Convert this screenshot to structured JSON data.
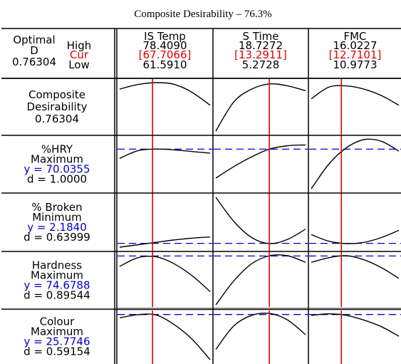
{
  "title": "Composite Desirability – 76.3%",
  "optimal": {
    "label_line1": "Optimal",
    "label_line2": "D",
    "value": "0.76304"
  },
  "row_labels": {
    "high": "High",
    "cur": "Cur",
    "low": "Low"
  },
  "factors": [
    {
      "name": "IS Temp",
      "high": "78.4090",
      "cur": "[67.7066]",
      "low": "61.5910",
      "high_num": 78.409,
      "cur_num": 67.7066,
      "low_num": 61.591
    },
    {
      "name": "S Time",
      "high": "18.7272",
      "cur": "[13.2911]",
      "low": "5.2728",
      "high_num": 18.7272,
      "cur_num": 13.2911,
      "low_num": 5.2728
    },
    {
      "name": "FMC",
      "high": "16.0227",
      "cur": "[12.7101]",
      "low": "10.9773",
      "high_num": 16.0227,
      "cur_num": 12.7101,
      "low_num": 10.9773
    }
  ],
  "responses": [
    {
      "lines": [
        "Composite",
        "Desirability",
        "0.76304"
      ],
      "blue_line": null,
      "goal": null
    },
    {
      "lines": [
        "%HRY",
        "Maximum",
        "y = 70.0355",
        "d = 1.0000"
      ],
      "blue_line": 2,
      "goal": "maximum"
    },
    {
      "lines": [
        "% Broken",
        "Minimum",
        "y = 2.1840",
        "d = 0.63999"
      ],
      "blue_line": 2,
      "goal": "minimum"
    },
    {
      "lines": [
        "Hardness",
        "Maximum",
        "y = 74.6788",
        "d = 0.89544"
      ],
      "blue_line": 2,
      "goal": "maximum"
    },
    {
      "lines": [
        "Colour",
        "Maximum",
        "y = 25.7746",
        "d = 0.59154"
      ],
      "blue_line": 2,
      "goal": "maximum"
    }
  ],
  "colors": {
    "current_setting": "#e00000",
    "predicted_response": "#0000cc",
    "curve": "#000000",
    "frame": "#000000"
  },
  "chart_data": {
    "type": "line",
    "title": "Composite Desirability – 76.3%",
    "x_factors": [
      "IS Temp",
      "S Time",
      "FMC"
    ],
    "current_settings": [
      67.7066,
      13.2911,
      12.7101
    ],
    "series": [
      {
        "name": "Composite Desirability",
        "target": null,
        "curves": [
          {
            "x": [
              61.591,
              64.955,
              68.318,
              71.682,
              75.045,
              78.409
            ],
            "y": [
              0.75,
              0.764,
              0.77,
              0.765,
              0.74,
              0.7
            ]
          },
          {
            "x": [
              5.2728,
              7.9637,
              10.6546,
              13.3455,
              16.0364,
              18.7272
            ],
            "y": [
              0.62,
              0.71,
              0.75,
              0.766,
              0.76,
              0.745
            ]
          },
          {
            "x": [
              10.9773,
              11.9864,
              12.9955,
              14.0045,
              15.0136,
              16.0227
            ],
            "y": [
              0.72,
              0.756,
              0.76,
              0.75,
              0.73,
              0.7
            ]
          }
        ]
      },
      {
        "name": "%HRY",
        "target": 70.0355,
        "curves": [
          {
            "x": [
              61.591,
              64.955,
              68.318,
              71.682,
              75.045,
              78.409
            ],
            "y": [
              68.9,
              69.85,
              70.05,
              69.95,
              69.75,
              69.55
            ]
          },
          {
            "x": [
              5.2728,
              7.9637,
              10.6546,
              13.3455,
              16.0364,
              18.7272
            ],
            "y": [
              66.5,
              67.9,
              69.1,
              70.05,
              70.45,
              70.55
            ]
          },
          {
            "x": [
              10.9773,
              11.9864,
              12.9955,
              14.0045,
              15.0136,
              16.0227
            ],
            "y": [
              65.2,
              68.2,
              70.2,
              71.2,
              71.0,
              69.8
            ]
          }
        ]
      },
      {
        "name": "% Broken",
        "target": 2.184,
        "curves": [
          {
            "x": [
              61.591,
              64.955,
              68.318,
              71.682,
              75.045,
              78.409
            ],
            "y": [
              2.12,
              2.16,
              2.2,
              2.24,
              2.27,
              2.29
            ]
          },
          {
            "x": [
              5.2728,
              7.9637,
              10.6546,
              13.3455,
              16.0364,
              18.7272
            ],
            "y": [
              2.95,
              2.55,
              2.28,
              2.18,
              2.25,
              2.42
            ]
          },
          {
            "x": [
              10.9773,
              11.9864,
              12.9955,
              14.0045,
              15.0136,
              16.0227
            ],
            "y": [
              2.33,
              2.22,
              2.18,
              2.2,
              2.28,
              2.4
            ]
          }
        ]
      },
      {
        "name": "Hardness",
        "target": 74.6788,
        "curves": [
          {
            "x": [
              61.591,
              64.955,
              68.318,
              71.682,
              75.045,
              78.409
            ],
            "y": [
              73.9,
              74.55,
              74.62,
              74.1,
              73.2,
              72.0
            ]
          },
          {
            "x": [
              5.2728,
              7.9637,
              10.6546,
              13.3455,
              16.0364,
              18.7272
            ],
            "y": [
              71.0,
              72.8,
              74.1,
              74.7,
              74.7,
              74.2
            ]
          },
          {
            "x": [
              10.9773,
              11.9864,
              12.9955,
              14.0045,
              15.0136,
              16.0227
            ],
            "y": [
              74.2,
              74.55,
              74.7,
              74.4,
              73.8,
              73.0
            ]
          }
        ]
      },
      {
        "name": "Colour",
        "target": 25.7746,
        "curves": [
          {
            "x": [
              61.591,
              64.955,
              68.318,
              71.682,
              75.045,
              78.409
            ],
            "y": [
              25.55,
              25.76,
              25.75,
              25.1,
              24.1,
              22.7
            ]
          },
          {
            "x": [
              5.2728,
              7.9637,
              10.6546,
              13.3455,
              16.0364,
              18.7272
            ],
            "y": [
              23.4,
              25.0,
              25.72,
              25.85,
              25.4,
              24.4
            ]
          },
          {
            "x": [
              10.9773,
              11.9864,
              12.9955,
              14.0045,
              15.0136,
              16.0227
            ],
            "y": [
              25.72,
              25.82,
              25.72,
              25.4,
              24.95,
              24.3
            ]
          }
        ]
      }
    ]
  }
}
